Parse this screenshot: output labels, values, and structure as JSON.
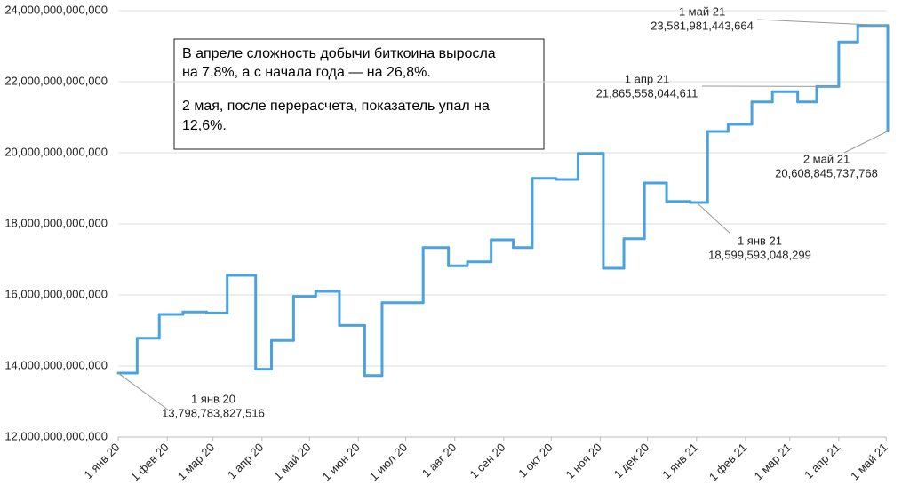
{
  "chart_data": {
    "type": "step",
    "x": [
      "2020-01-01",
      "2020-01-13",
      "2020-01-27",
      "2020-02-11",
      "2020-02-26",
      "2020-03-10",
      "2020-03-28",
      "2020-04-07",
      "2020-04-21",
      "2020-05-05",
      "2020-05-20",
      "2020-06-05",
      "2020-06-16",
      "2020-07-12",
      "2020-07-28",
      "2020-08-09",
      "2020-08-24",
      "2020-09-07",
      "2020-09-19",
      "2020-10-04",
      "2020-10-18",
      "2020-11-03",
      "2020-11-16",
      "2020-11-29",
      "2020-12-13",
      "2020-12-28",
      "2021-01-08",
      "2021-01-21",
      "2021-02-05",
      "2021-02-18",
      "2021-03-06",
      "2021-03-18",
      "2021-04-01",
      "2021-04-13",
      "2021-05-02"
    ],
    "series": [
      {
        "color": "#4aa3df",
        "values": [
          13798783827516,
          14780000000000,
          15450000000000,
          15520000000000,
          15490000000000,
          16550000000000,
          13910000000000,
          14720000000000,
          15960000000000,
          16100000000000,
          15140000000000,
          13730000000000,
          15780000000000,
          17330000000000,
          16820000000000,
          16930000000000,
          17550000000000,
          17330000000000,
          19280000000000,
          19250000000000,
          19980000000000,
          16750000000000,
          17580000000000,
          19150000000000,
          18630000000000,
          18599593048299,
          20600000000000,
          20800000000000,
          21430000000000,
          21720000000000,
          21430000000000,
          21865558044611,
          23120000000000,
          23581981443664,
          20608845737768
        ]
      }
    ],
    "xlim": [
      "2020-01-01",
      "2021-05-02"
    ],
    "xticks": [
      {
        "value": "2020-01-01",
        "label": "1 янв 20"
      },
      {
        "value": "2020-02-01",
        "label": "1 фев 20"
      },
      {
        "value": "2020-03-01",
        "label": "1 мар 20"
      },
      {
        "value": "2020-04-01",
        "label": "1 апр 20"
      },
      {
        "value": "2020-05-01",
        "label": "1 май 20"
      },
      {
        "value": "2020-06-01",
        "label": "1 июн 20"
      },
      {
        "value": "2020-07-01",
        "label": "1 июл 20"
      },
      {
        "value": "2020-08-01",
        "label": "1 авг 20"
      },
      {
        "value": "2020-09-01",
        "label": "1 сен 20"
      },
      {
        "value": "2020-10-01",
        "label": "1 окт 20"
      },
      {
        "value": "2020-11-01",
        "label": "1 ноя 20"
      },
      {
        "value": "2020-12-01",
        "label": "1 дек 20"
      },
      {
        "value": "2021-01-01",
        "label": "1 янв 21"
      },
      {
        "value": "2021-02-01",
        "label": "1 фев 21"
      },
      {
        "value": "2021-03-01",
        "label": "1 мар 21"
      },
      {
        "value": "2021-04-01",
        "label": "1 апр 21"
      },
      {
        "value": "2021-05-01",
        "label": "1 май 21"
      }
    ],
    "ylim": [
      12000000000000,
      24000000000000
    ],
    "yticks": [
      {
        "value": 12000000000000,
        "label": "12,000,000,000,000"
      },
      {
        "value": 14000000000000,
        "label": "14,000,000,000,000"
      },
      {
        "value": 16000000000000,
        "label": "16,000,000,000,000"
      },
      {
        "value": 18000000000000,
        "label": "18,000,000,000,000"
      },
      {
        "value": 20000000000000,
        "label": "20,000,000,000,000"
      },
      {
        "value": 22000000000000,
        "label": "22,000,000,000,000"
      },
      {
        "value": 24000000000000,
        "label": "24,000,000,000,000"
      }
    ],
    "grid": true,
    "annotations": [
      {
        "x": "2020-01-01",
        "date_label": "1 янв 20",
        "value": 13798783827516,
        "value_label": "13,798,783,827,516"
      },
      {
        "x": "2021-04-01",
        "date_label": "1 апр 21",
        "value": 21865558044611,
        "value_label": "21,865,558,044,611"
      },
      {
        "x": "2021-05-01",
        "date_label": "1 май 21",
        "value": 23581981443664,
        "value_label": "23,581,981,443,664"
      },
      {
        "x": "2021-05-02",
        "date_label": "2 май 21",
        "value": 20608845737768,
        "value_label": "20,608,845,737,768"
      },
      {
        "x": "2021-01-01",
        "date_label": "1 янв 21",
        "value": 18599593048299,
        "value_label": "18,599,593,048,299"
      }
    ],
    "note": [
      "В апреле сложность добычи биткоина выросла",
      "на 7,8%, а с начала года — на 26,8%.",
      "2 мая, после перерасчета, показатель упал на",
      "12,6%."
    ]
  }
}
